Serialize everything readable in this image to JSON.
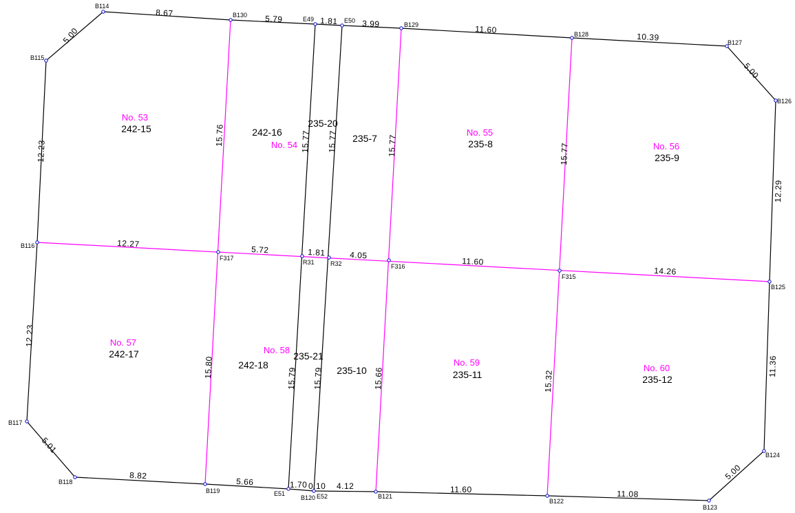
{
  "colors": {
    "boundary": "#000000",
    "internal": "#ff00ff",
    "point": "#0000cc",
    "lot_number": "#ff00ff"
  },
  "points": {
    "B114": "B114",
    "B130": "B130",
    "E49": "E49",
    "E50": "E50",
    "B129": "B129",
    "B128": "B128",
    "B127": "B127",
    "B126": "B126",
    "B115": "B115",
    "B116": "B116",
    "F317": "F317",
    "R31": "R31",
    "R32": "R32",
    "F316": "F316",
    "F315": "F315",
    "B125": "B125",
    "B124": "B124",
    "B117": "B117",
    "B118": "B118",
    "B119": "B119",
    "E51": "E51",
    "B120": "B120",
    "E52": "E52",
    "B121": "B121",
    "B122": "B122",
    "B123": "B123"
  },
  "dimensions": {
    "top_a": "8.67",
    "top_b": "5.79",
    "top_c": "1.81",
    "top_d": "3.99",
    "top_e": "11.60",
    "top_f": "10.39",
    "corner_tr": "5.00",
    "corner_tl": "5.00",
    "left_upper": "12.23",
    "left_lower": "12.23",
    "right_upper": "12.29",
    "right_lower": "11.36",
    "mid_a": "12.27",
    "mid_b": "5.72",
    "mid_c": "1.81",
    "mid_d": "4.05",
    "mid_e": "11.60",
    "mid_f": "14.26",
    "v_f317_up": "15.76",
    "v_r31_up": "15.77",
    "v_r32_up": "15.77",
    "v_f316_up": "15.77",
    "v_f315_up": "15.77",
    "v_f317_dn": "15.80",
    "v_r31_dn": "15.79",
    "v_r32_dn": "15.79",
    "v_f316_dn": "15.66",
    "v_f315_dn": "15.32",
    "corner_bl": "5.01",
    "corner_br": "5.00",
    "bot_a": "8.82",
    "bot_b": "5.66",
    "bot_c": "1.70",
    "bot_d": "0.10",
    "bot_e": "4.12",
    "bot_f": "11.60",
    "bot_g": "11.08"
  },
  "lots": [
    {
      "no": "No. 53",
      "parcel": "242-15"
    },
    {
      "no": "No. 54",
      "parcel": "242-16"
    },
    {
      "no": "",
      "parcel": "235-20"
    },
    {
      "no": "",
      "parcel": "235-7"
    },
    {
      "no": "No. 55",
      "parcel": "235-8"
    },
    {
      "no": "No. 56",
      "parcel": "235-9"
    },
    {
      "no": "No. 57",
      "parcel": "242-17"
    },
    {
      "no": "No. 58",
      "parcel": "242-18"
    },
    {
      "no": "",
      "parcel": "235-21"
    },
    {
      "no": "",
      "parcel": "235-10"
    },
    {
      "no": "No. 59",
      "parcel": "235-11"
    },
    {
      "no": "No. 60",
      "parcel": "235-12"
    }
  ]
}
